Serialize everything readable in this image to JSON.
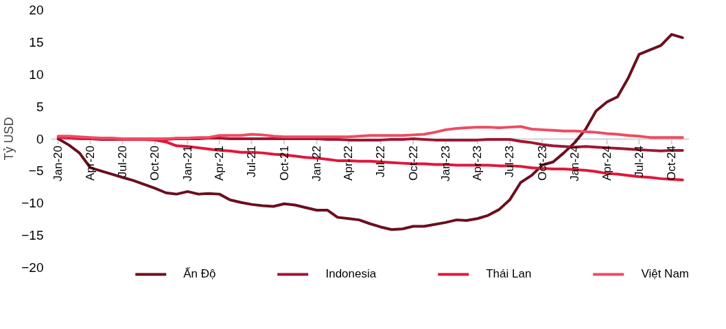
{
  "chart_data": {
    "type": "line",
    "ylabel": "Tỷ USD",
    "x": [
      "2020-01",
      "2020-02",
      "2020-03",
      "2020-04",
      "2020-05",
      "2020-06",
      "2020-07",
      "2020-08",
      "2020-09",
      "2020-10",
      "2020-11",
      "2020-12",
      "2021-01",
      "2021-02",
      "2021-03",
      "2021-04",
      "2021-05",
      "2021-06",
      "2021-07",
      "2021-08",
      "2021-09",
      "2021-10",
      "2021-11",
      "2021-12",
      "2022-01",
      "2022-02",
      "2022-03",
      "2022-04",
      "2022-05",
      "2022-06",
      "2022-07",
      "2022-08",
      "2022-09",
      "2022-10",
      "2022-11",
      "2022-12",
      "2023-01",
      "2023-02",
      "2023-03",
      "2023-04",
      "2023-05",
      "2023-06",
      "2023-07",
      "2023-08",
      "2023-09",
      "2023-10",
      "2023-11",
      "2023-12",
      "2024-01",
      "2024-02",
      "2024-03",
      "2024-04",
      "2024-05",
      "2024-06",
      "2024-07",
      "2024-08",
      "2024-09",
      "2024-10",
      "2024-11"
    ],
    "series": [
      {
        "name": "Ấn Độ",
        "color": "#6b0f1e",
        "values": [
          0,
          -1.0,
          -2.2,
          -4.5,
          -5.0,
          -5.5,
          -6.0,
          -6.5,
          -7.1,
          -7.7,
          -8.4,
          -8.6,
          -8.2,
          -8.6,
          -8.5,
          -8.6,
          -9.5,
          -9.9,
          -10.2,
          -10.4,
          -10.5,
          -10.1,
          -10.3,
          -10.7,
          -11.1,
          -11.1,
          -12.2,
          -12.4,
          -12.6,
          -13.2,
          -13.7,
          -14.1,
          -14.0,
          -13.6,
          -13.6,
          -13.3,
          -13.0,
          -12.6,
          -12.7,
          -12.4,
          -11.9,
          -11.0,
          -9.5,
          -6.8,
          -5.7,
          -4.1,
          -3.6,
          -2.2,
          -0.6,
          1.5,
          4.3,
          5.7,
          6.5,
          9.5,
          13.1,
          13.8,
          14.5,
          16.2,
          15.7
        ]
      },
      {
        "name": "Indonesia",
        "color": "#9e1633",
        "values": [
          0.3,
          0.2,
          0.1,
          0,
          -0.1,
          -0.1,
          -0.1,
          -0.1,
          -0.1,
          -0.1,
          -0.1,
          0,
          0,
          0,
          0.1,
          0.1,
          0,
          0,
          0,
          0,
          0,
          0,
          0,
          0,
          0,
          -0.1,
          -0.1,
          -0.2,
          -0.2,
          -0.2,
          -0.2,
          -0.1,
          -0.1,
          0,
          -0.1,
          -0.2,
          -0.2,
          -0.2,
          -0.2,
          -0.2,
          -0.1,
          -0.1,
          -0.1,
          -0.4,
          -0.6,
          -0.9,
          -1.1,
          -1.2,
          -1.3,
          -1.2,
          -1.3,
          -1.4,
          -1.5,
          -1.6,
          -1.7,
          -1.8,
          -1.9,
          -1.8,
          -1.8
        ]
      },
      {
        "name": "Thái Lan",
        "color": "#e0173a",
        "values": [
          0.2,
          0.1,
          0,
          0,
          0,
          0,
          -0.1,
          -0.1,
          -0.1,
          -0.2,
          -0.5,
          -1.1,
          -1.2,
          -1.4,
          -1.6,
          -1.8,
          -1.9,
          -2.1,
          -2.1,
          -2.2,
          -2.4,
          -2.5,
          -2.7,
          -2.9,
          -3.0,
          -3.2,
          -3.4,
          -3.4,
          -3.5,
          -3.5,
          -3.6,
          -3.7,
          -3.8,
          -3.9,
          -3.9,
          -4.0,
          -4.0,
          -4.1,
          -4.1,
          -4.1,
          -4.1,
          -4.2,
          -4.2,
          -4.3,
          -4.5,
          -4.6,
          -4.7,
          -4.7,
          -4.8,
          -4.9,
          -5.1,
          -5.4,
          -5.5,
          -5.7,
          -5.9,
          -6.0,
          -6.2,
          -6.3,
          -6.4
        ]
      },
      {
        "name": "Việt Nam",
        "color": "#ef4b62",
        "values": [
          0.4,
          0.4,
          0.3,
          0.2,
          0.1,
          0.1,
          0,
          0,
          0,
          0,
          0,
          0.1,
          0.1,
          0.2,
          0.2,
          0.5,
          0.5,
          0.5,
          0.7,
          0.6,
          0.4,
          0.3,
          0.3,
          0.3,
          0.3,
          0.3,
          0.3,
          0.3,
          0.4,
          0.5,
          0.5,
          0.5,
          0.5,
          0.6,
          0.7,
          1.0,
          1.4,
          1.6,
          1.7,
          1.8,
          1.8,
          1.7,
          1.8,
          1.9,
          1.5,
          1.4,
          1.3,
          1.2,
          1.2,
          1.1,
          1.0,
          0.8,
          0.7,
          0.5,
          0.4,
          0.2,
          0.2,
          0.2,
          0.2
        ]
      }
    ],
    "xlim": [
      "2019-12-12",
      "2024-11-20"
    ],
    "xticks": [
      {
        "value": "2020-01",
        "label": "Jan-20"
      },
      {
        "value": "2020-04",
        "label": "Apr-20"
      },
      {
        "value": "2020-07",
        "label": "Jul-20"
      },
      {
        "value": "2020-10",
        "label": "Oct-20"
      },
      {
        "value": "2021-01",
        "label": "Jan-21"
      },
      {
        "value": "2021-04",
        "label": "Apr-21"
      },
      {
        "value": "2021-07",
        "label": "Jul-21"
      },
      {
        "value": "2021-10",
        "label": "Oct-21"
      },
      {
        "value": "2022-01",
        "label": "Jan-22"
      },
      {
        "value": "2022-04",
        "label": "Apr-22"
      },
      {
        "value": "2022-07",
        "label": "Jul-22"
      },
      {
        "value": "2022-10",
        "label": "Oct-22"
      },
      {
        "value": "2023-01",
        "label": "Jan-23"
      },
      {
        "value": "2023-04",
        "label": "Apr-23"
      },
      {
        "value": "2023-07",
        "label": "Jul-23"
      },
      {
        "value": "2023-10",
        "label": "Oct-23"
      },
      {
        "value": "2024-01",
        "label": "Jan-24"
      },
      {
        "value": "2024-04",
        "label": "Apr-24"
      },
      {
        "value": "2024-07",
        "label": "Jul-24"
      },
      {
        "value": "2024-10",
        "label": "Oct-24"
      }
    ],
    "ylim": [
      -20,
      20
    ],
    "yticks": [
      -20,
      -15,
      -10,
      -5,
      0,
      5,
      10,
      15,
      20
    ],
    "grid": false,
    "legend": "bottom",
    "line_style": "solid"
  }
}
